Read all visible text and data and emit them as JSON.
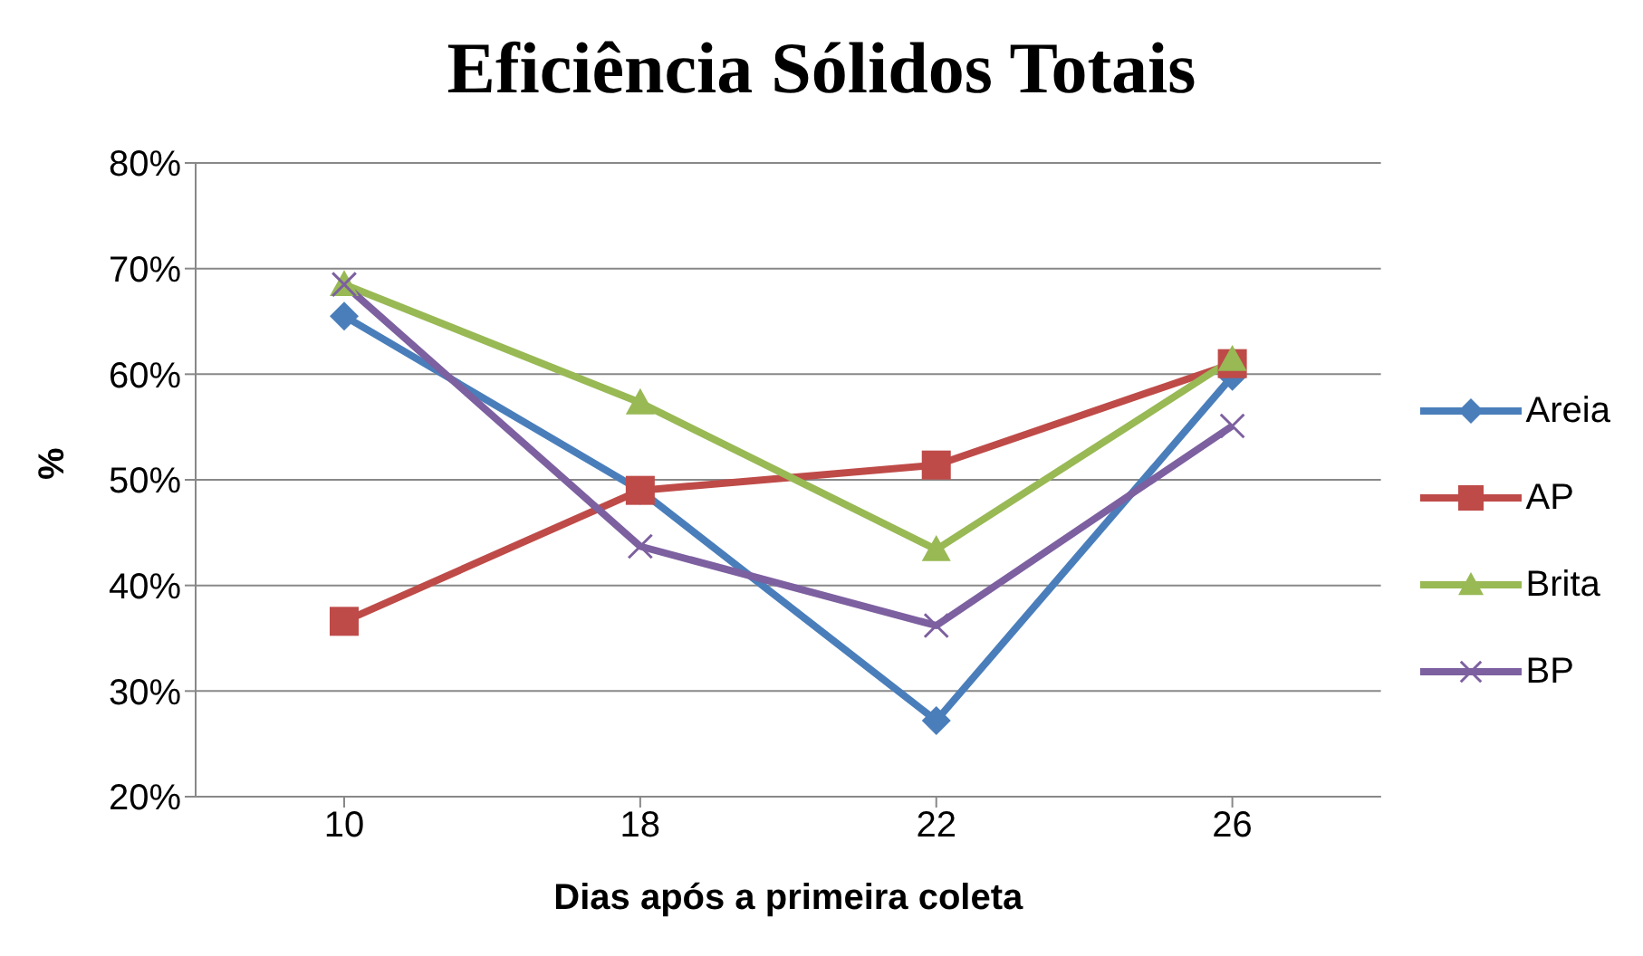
{
  "chart_data": {
    "type": "line",
    "title": "Eficiência Sólidos Totais",
    "xlabel": "Dias após a primeira coleta",
    "ylabel": "%",
    "categories": [
      "10",
      "18",
      "22",
      "26"
    ],
    "series": [
      {
        "name": "Areia",
        "color": "#4a7ebb",
        "marker": "diamond",
        "values": [
          65.5,
          49,
          27.2,
          59.8
        ]
      },
      {
        "name": "AP",
        "color": "#be4b48",
        "marker": "square",
        "values": [
          36.6,
          49,
          51.4,
          61
        ]
      },
      {
        "name": "Brita",
        "color": "#98b954",
        "marker": "triangle",
        "values": [
          68.5,
          57.3,
          43.4,
          61.4
        ]
      },
      {
        "name": "BP",
        "color": "#7d60a0",
        "marker": "cross",
        "values": [
          68.5,
          43.7,
          36.2,
          55.1
        ]
      }
    ],
    "ylim": [
      20,
      80
    ],
    "yticks": [
      {
        "value": 20,
        "label": "20%"
      },
      {
        "value": 30,
        "label": "30%"
      },
      {
        "value": 40,
        "label": "40%"
      },
      {
        "value": 50,
        "label": "50%"
      },
      {
        "value": 60,
        "label": "60%"
      },
      {
        "value": 70,
        "label": "70%"
      },
      {
        "value": 80,
        "label": "80%"
      }
    ],
    "grid": "y",
    "legend": "right"
  }
}
